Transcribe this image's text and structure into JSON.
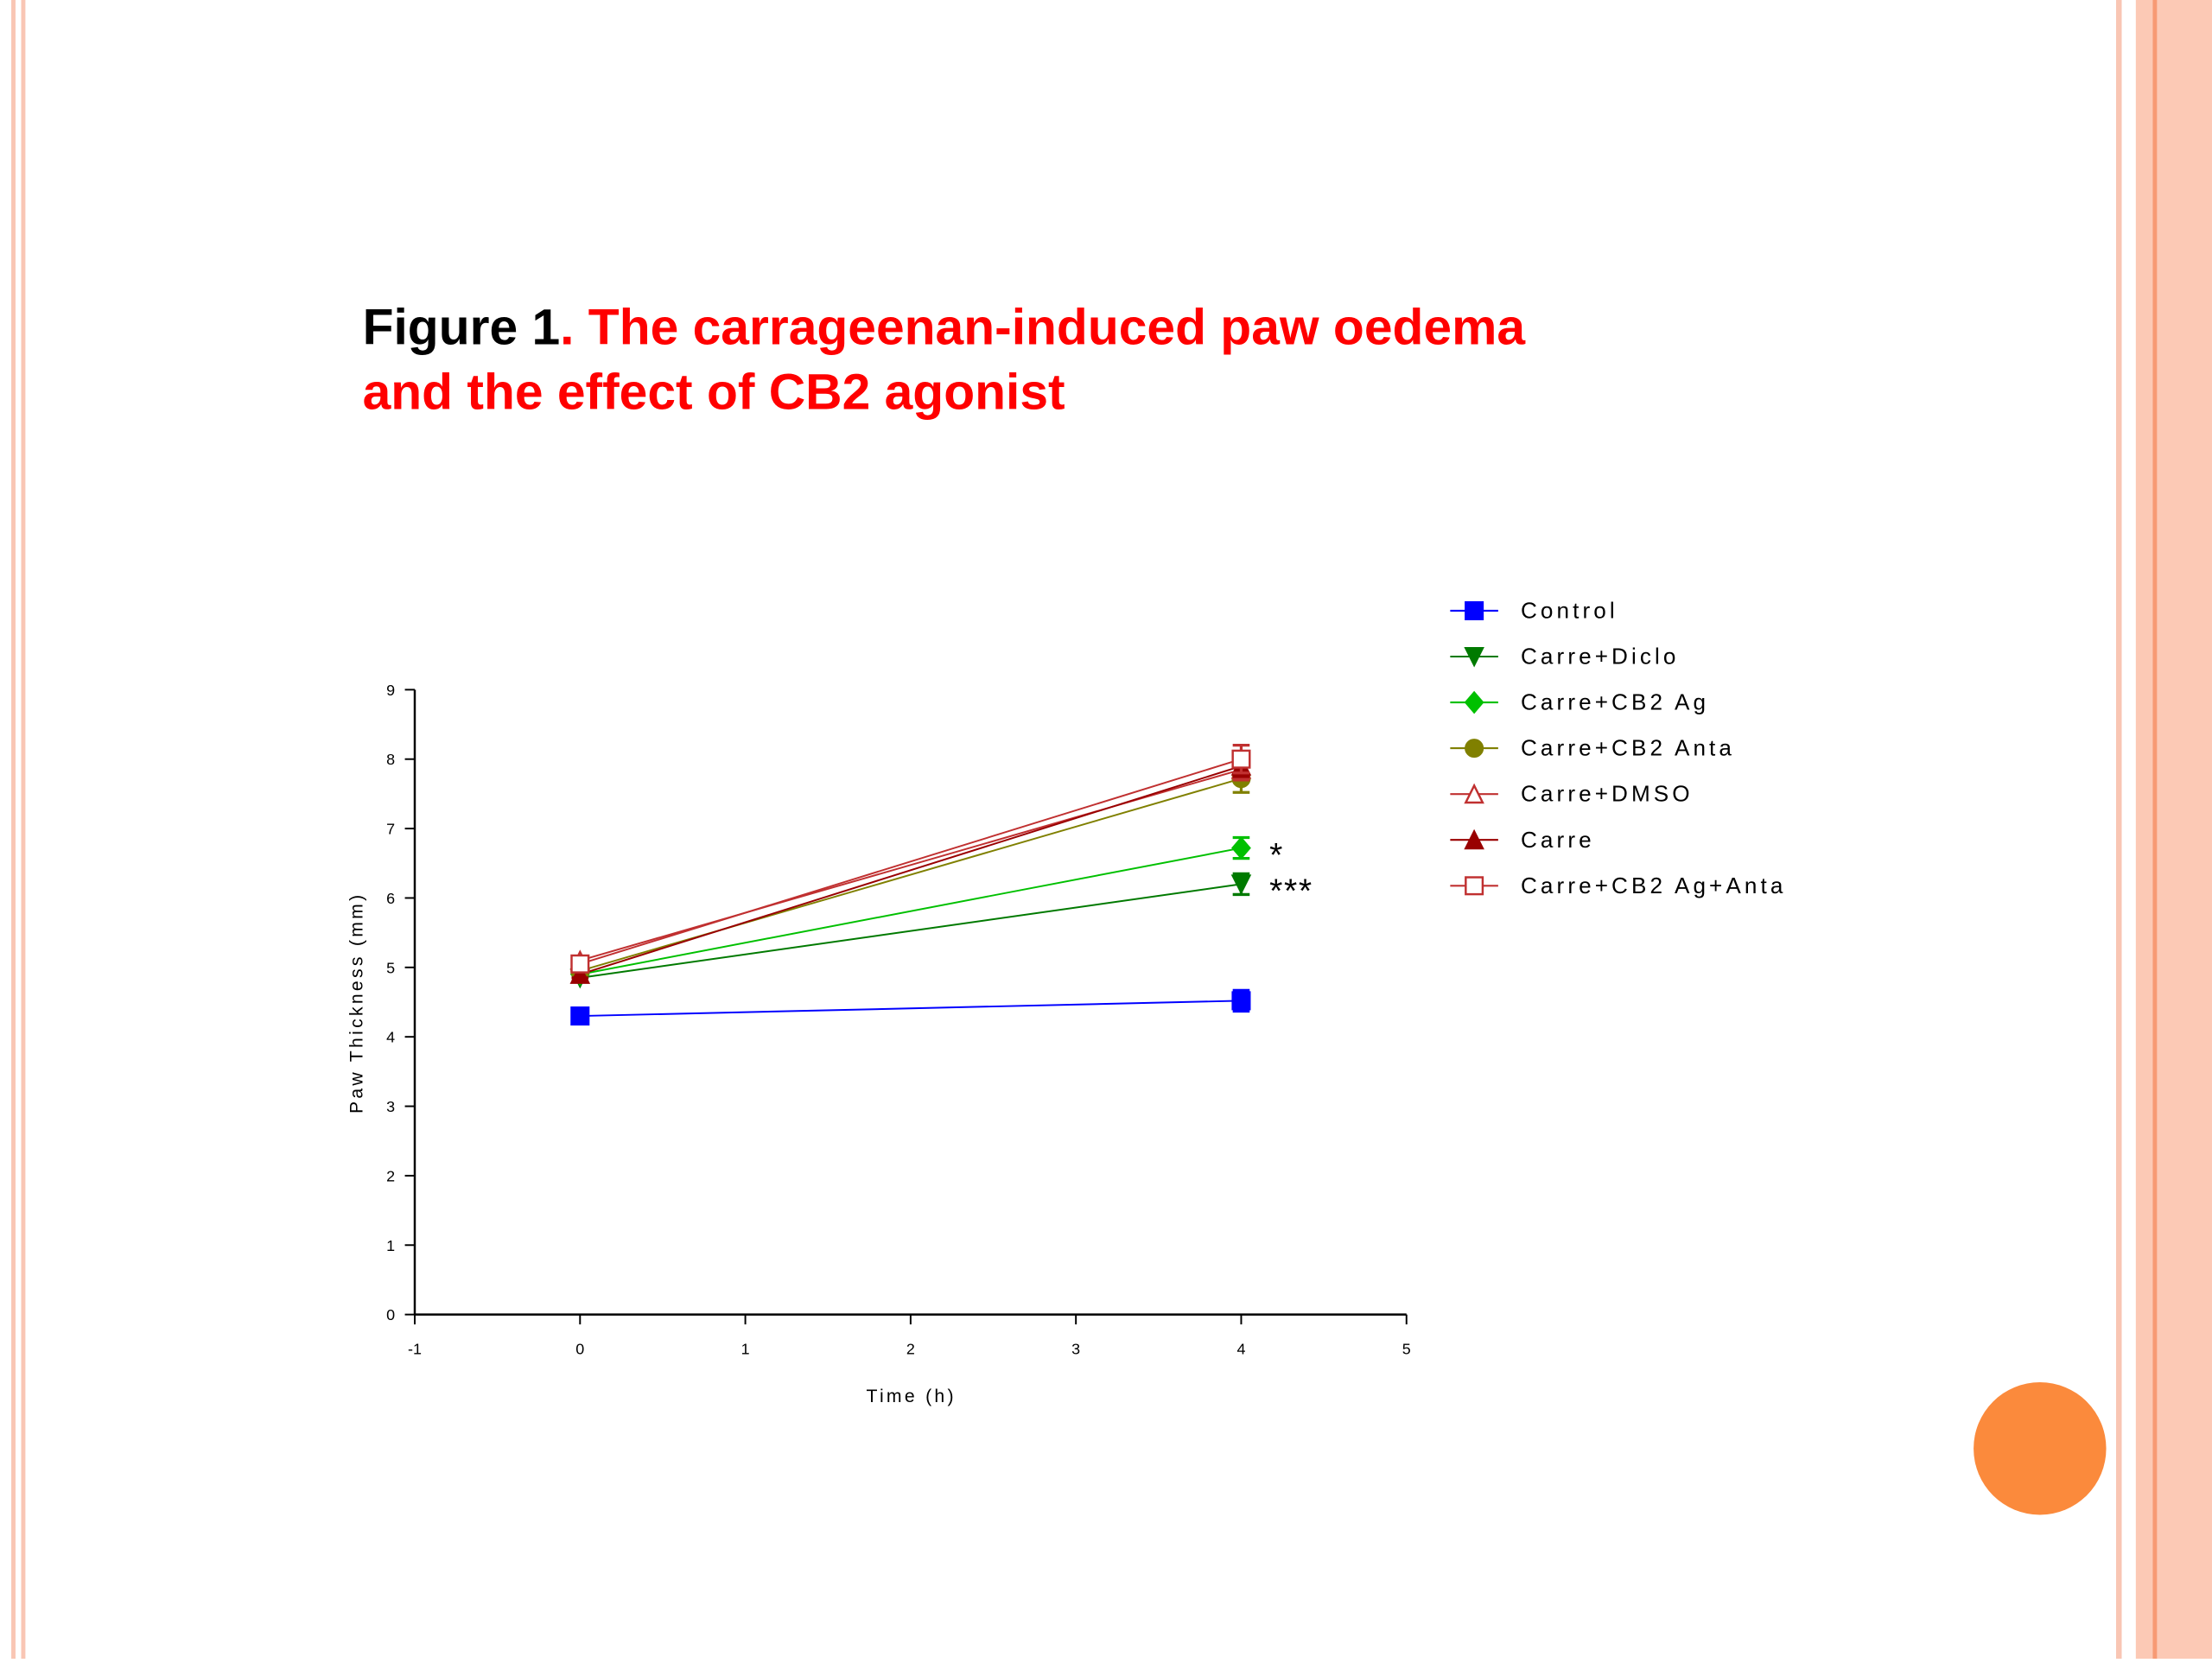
{
  "chart_data": {
    "type": "line",
    "title_lead": "Figure 1",
    "title_lines": [
      ". The carrageenan-induced paw oedema",
      "and the effect of CB2 agonist"
    ],
    "x_label": "Time (h)",
    "y_label": "Paw Thickness (mm)",
    "x": [
      0,
      4
    ],
    "xlim": [
      -1,
      5
    ],
    "xticks": [
      -1,
      0,
      1,
      2,
      3,
      4,
      5
    ],
    "ylim": [
      0,
      9
    ],
    "yticks": [
      0,
      1,
      2,
      3,
      4,
      5,
      6,
      7,
      8,
      9
    ],
    "legend": "right",
    "series": [
      {
        "name": "Control",
        "color": "#0000ff",
        "marker": "square",
        "values": [
          4.3,
          4.52
        ],
        "errors": [
          0.05,
          0.15
        ]
      },
      {
        "name": "Carre+Diclo",
        "color": "#007a00",
        "marker": "triangle-down",
        "values": [
          4.85,
          6.2
        ],
        "errors": [
          0.05,
          0.15
        ],
        "annotation": "***"
      },
      {
        "name": "Carre+CB2 Ag",
        "color": "#00c000",
        "marker": "diamond",
        "values": [
          4.9,
          6.72
        ],
        "errors": [
          0.05,
          0.15
        ],
        "annotation": "*"
      },
      {
        "name": "Carre+CB2 Anta",
        "color": "#808000",
        "marker": "circle",
        "values": [
          4.95,
          7.72
        ],
        "errors": [
          0.05,
          0.2
        ]
      },
      {
        "name": "Carre+DMSO",
        "color": "#c03030",
        "marker": "triangle-open",
        "values": [
          5.1,
          7.85
        ],
        "errors": [
          0.05,
          0.15
        ]
      },
      {
        "name": "Carre",
        "color": "#990000",
        "marker": "triangle",
        "values": [
          4.9,
          7.9
        ],
        "errors": [
          0.05,
          0.15
        ]
      },
      {
        "name": "Carre+CB2 Ag+Anta",
        "color": "#c03030",
        "marker": "square-open",
        "values": [
          5.05,
          8.0
        ],
        "errors": [
          0.05,
          0.2
        ]
      }
    ]
  }
}
